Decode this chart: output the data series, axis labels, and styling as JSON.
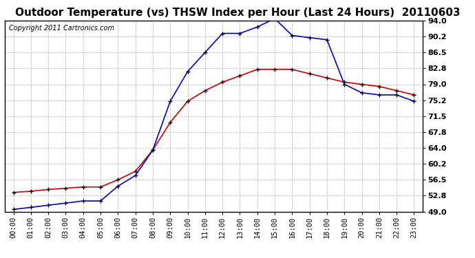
{
  "title": "Outdoor Temperature (vs) THSW Index per Hour (Last 24 Hours)  20110603",
  "copyright": "Copyright 2011 Cartronics.com",
  "x_labels": [
    "00:00",
    "01:00",
    "02:00",
    "03:00",
    "04:00",
    "05:00",
    "06:00",
    "07:00",
    "08:00",
    "09:00",
    "10:00",
    "11:00",
    "12:00",
    "13:00",
    "14:00",
    "15:00",
    "16:00",
    "17:00",
    "18:00",
    "19:00",
    "20:00",
    "21:00",
    "22:00",
    "23:00"
  ],
  "temp_red": [
    53.5,
    53.8,
    54.2,
    54.5,
    54.8,
    54.8,
    56.5,
    58.5,
    63.5,
    70.0,
    75.0,
    77.5,
    79.5,
    81.0,
    82.5,
    82.5,
    82.5,
    81.5,
    80.5,
    79.5,
    79.0,
    78.5,
    77.5,
    76.5
  ],
  "thsw_blue": [
    49.5,
    50.0,
    50.5,
    51.0,
    51.5,
    51.5,
    55.0,
    57.5,
    63.5,
    75.0,
    82.0,
    86.5,
    91.0,
    91.0,
    92.5,
    94.5,
    90.5,
    90.0,
    89.5,
    79.0,
    77.0,
    76.5,
    76.5,
    75.0
  ],
  "ylim_min": 49.0,
  "ylim_max": 94.0,
  "yticks": [
    49.0,
    52.8,
    56.5,
    60.2,
    64.0,
    67.8,
    71.5,
    75.2,
    79.0,
    82.8,
    86.5,
    90.2,
    94.0
  ],
  "bg_color": "#FFFFFF",
  "plot_bg_color": "#FFFFFF",
  "grid_color": "#BBBBBB",
  "title_fontsize": 11,
  "copyright_fontsize": 7,
  "tick_fontsize": 7.5,
  "ytick_fontsize": 8,
  "line_color_red": "#CC0000",
  "line_color_blue": "#0000CC",
  "marker": "+"
}
